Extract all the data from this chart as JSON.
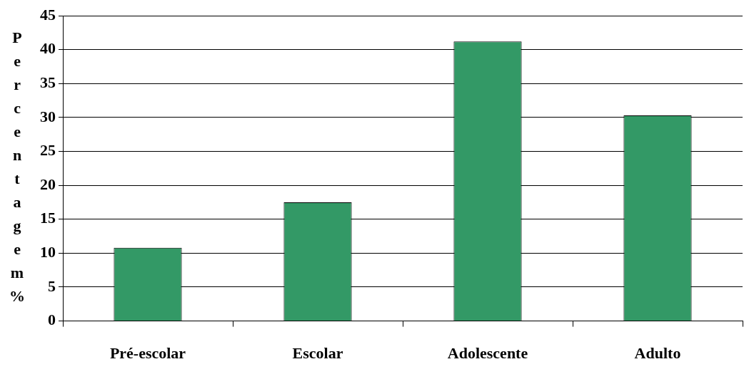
{
  "chart_data": {
    "type": "bar",
    "ylabel": "Percentagem %",
    "categories": [
      "Pré-escolar",
      "Escolar",
      "Adolescente",
      "Adulto"
    ],
    "values": [
      10.8,
      17.5,
      41.2,
      30.3
    ],
    "color": "#339966",
    "ylim": [
      0,
      45
    ],
    "yticks": [
      0,
      5,
      10,
      15,
      20,
      25,
      30,
      35,
      40,
      45
    ],
    "grid": "y",
    "legend": false
  }
}
